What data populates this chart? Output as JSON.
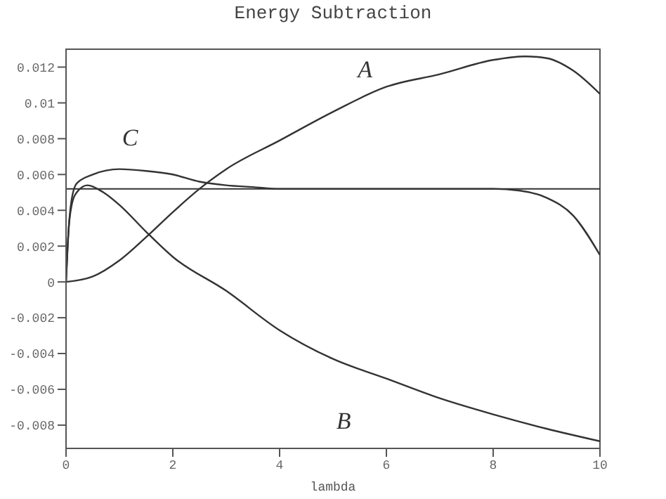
{
  "chart_data": {
    "type": "line",
    "title": "Energy Subtraction",
    "xlabel": "lambda",
    "xlim": [
      0,
      10
    ],
    "xticks": [
      0,
      2,
      4,
      6,
      8,
      10
    ],
    "ylim": [
      -0.0093,
      0.013
    ],
    "yticks": [
      -0.008,
      -0.006,
      -0.004,
      -0.002,
      0,
      0.002,
      0.004,
      0.006,
      0.008,
      0.01,
      0.012
    ],
    "marker": "none",
    "line_style": "solid",
    "ref_lines": [
      {
        "axis": "y",
        "value": 0.0052,
        "color": "#333333"
      }
    ],
    "series": [
      {
        "name": "A",
        "color": "#333333",
        "x": [
          0,
          0.5,
          1,
          1.5,
          2,
          2.5,
          3,
          4,
          5,
          6,
          7,
          8,
          8.6,
          9,
          9.5,
          10
        ],
        "values": [
          0,
          0.0003,
          0.0012,
          0.0025,
          0.0039,
          0.0052,
          0.0063,
          0.0079,
          0.0095,
          0.0109,
          0.0116,
          0.0124,
          0.0126,
          0.0125,
          0.0118,
          0.0105
        ]
      },
      {
        "name": "B",
        "color": "#333333",
        "x": [
          0,
          0.05,
          0.1,
          0.2,
          0.4,
          0.7,
          1,
          1.5,
          2,
          3,
          4,
          5,
          6,
          7,
          8,
          9,
          10
        ],
        "values": [
          0,
          0.003,
          0.0042,
          0.005,
          0.0054,
          0.005,
          0.0043,
          0.0028,
          0.0014,
          -0.0005,
          -0.0027,
          -0.0043,
          -0.0054,
          -0.0065,
          -0.0074,
          -0.0082,
          -0.0089
        ]
      },
      {
        "name": "C",
        "color": "#333333",
        "x": [
          0,
          0.05,
          0.1,
          0.2,
          0.5,
          1,
          1.5,
          2,
          2.5,
          3,
          3.5,
          4,
          6,
          8,
          8.5,
          9,
          9.5,
          10
        ],
        "values": [
          0,
          0.003,
          0.0045,
          0.0055,
          0.006,
          0.0063,
          0.0062,
          0.006,
          0.0056,
          0.0054,
          0.0053,
          0.0052,
          0.0052,
          0.0052,
          0.0051,
          0.0047,
          0.0037,
          0.0015
        ]
      }
    ]
  }
}
